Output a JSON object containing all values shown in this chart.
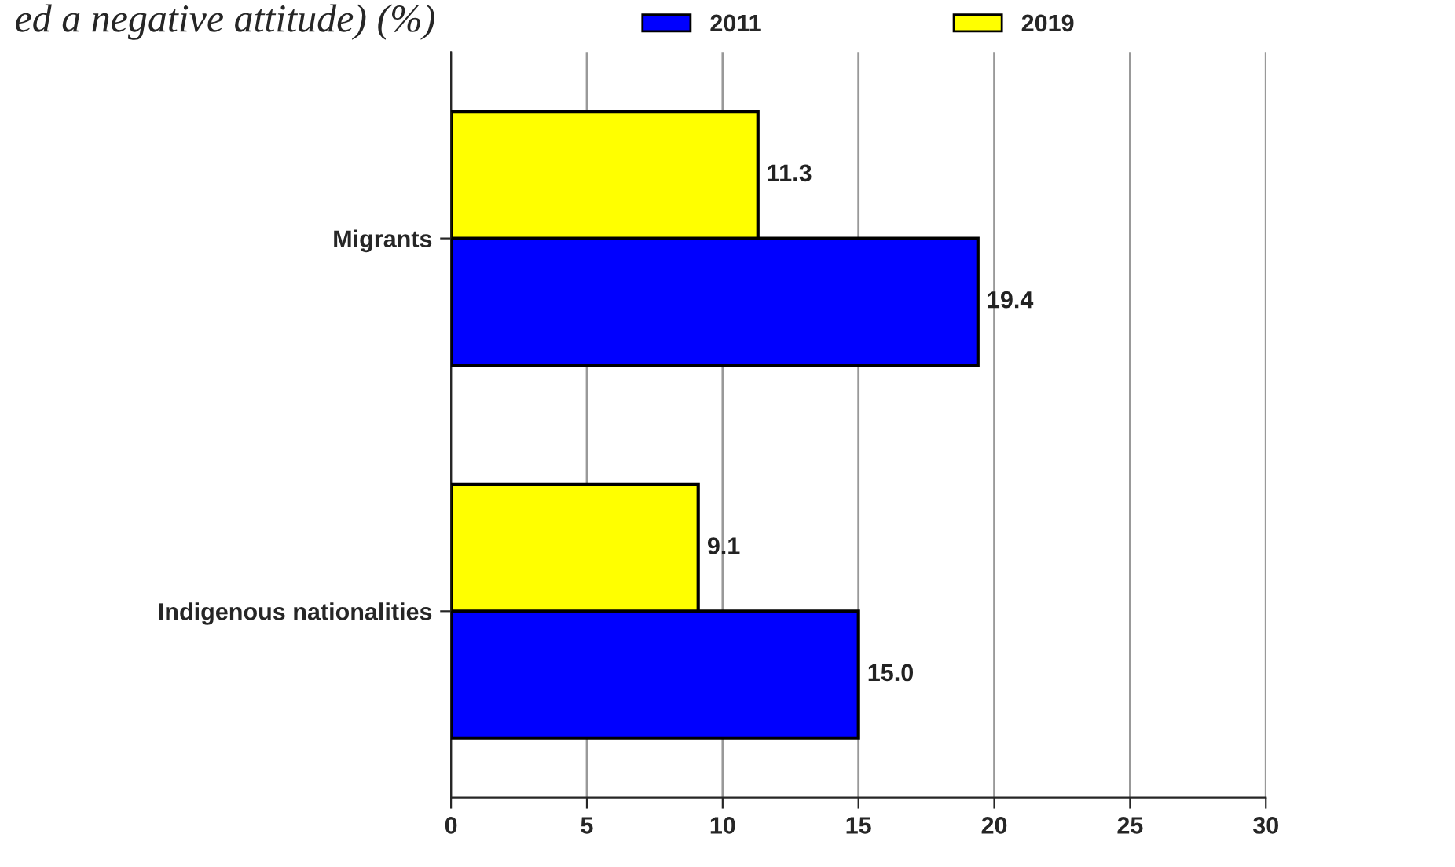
{
  "chart_data": {
    "type": "bar",
    "orientation": "horizontal",
    "title": "ed a negative attitude) (%)",
    "categories": [
      "Migrants",
      "Indigenous nationalities"
    ],
    "series": [
      {
        "name": "2011",
        "color": "#0000ff",
        "values": [
          19.4,
          15.0
        ],
        "value_labels": [
          "19.4",
          "15.0"
        ]
      },
      {
        "name": "2019",
        "color": "#ffff00",
        "values": [
          11.3,
          9.1
        ],
        "value_labels": [
          "11.3",
          "9.1"
        ]
      }
    ],
    "xlim": [
      0,
      30
    ],
    "xticks": [
      0,
      5,
      10,
      15,
      20,
      25,
      30
    ],
    "grid": "x",
    "legend": "top"
  }
}
